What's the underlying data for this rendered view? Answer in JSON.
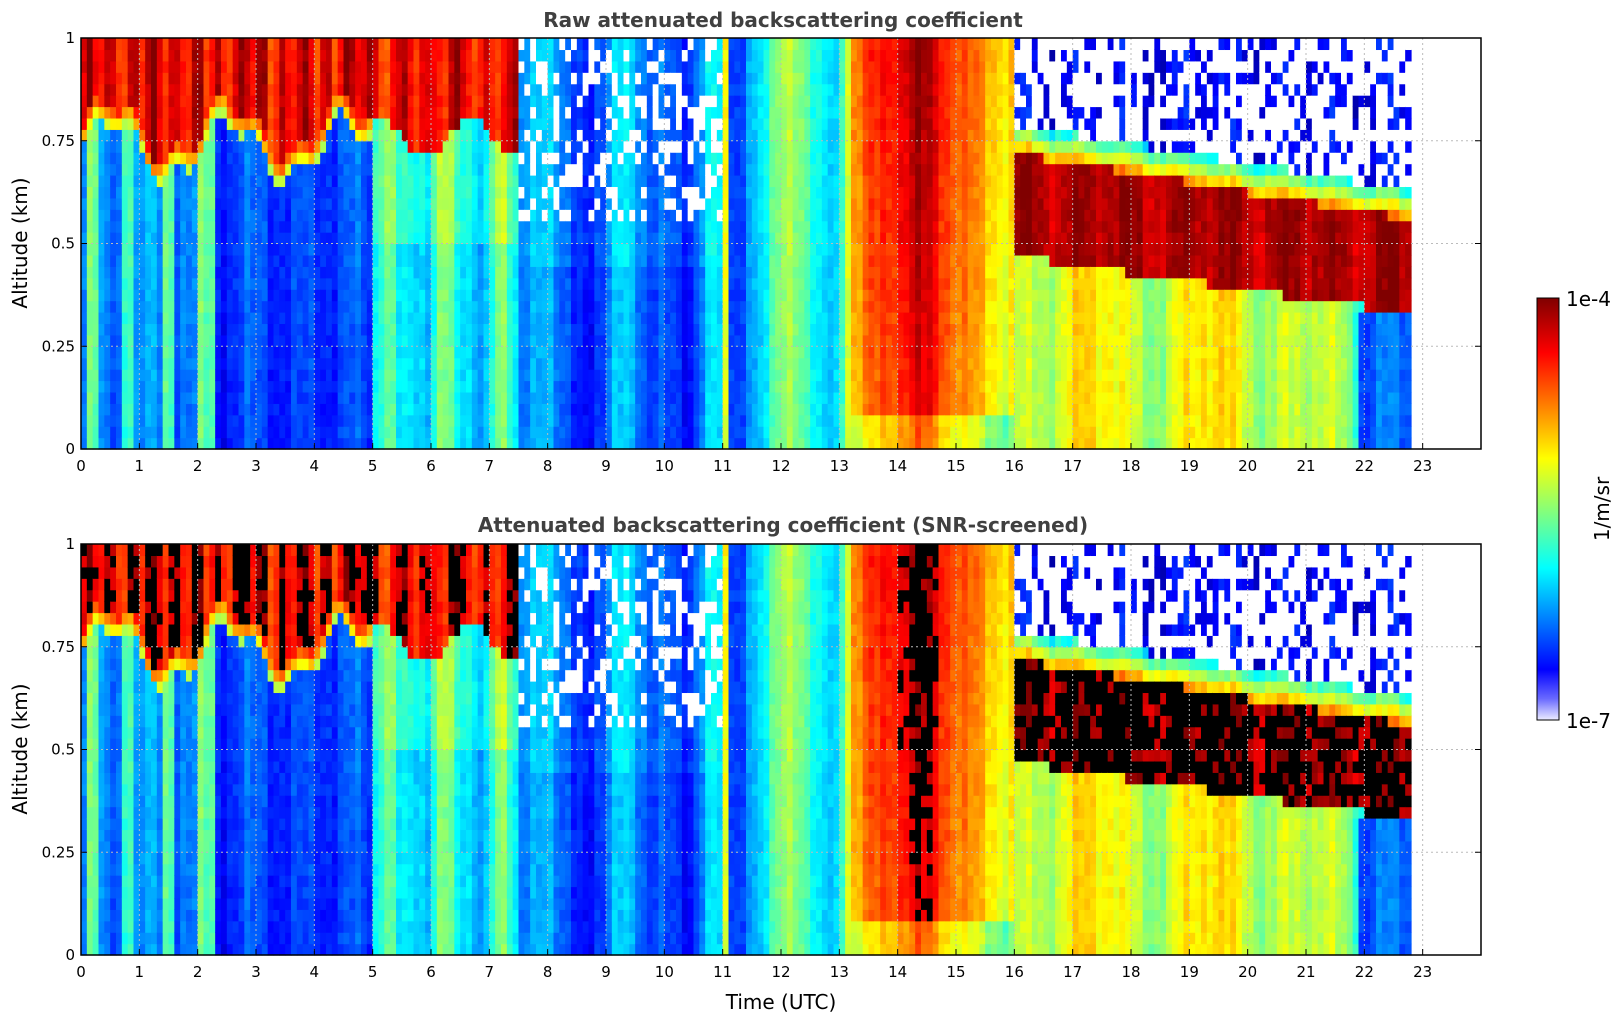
{
  "figure": {
    "colorbar": {
      "label": "1/m/sr",
      "max_label": "1e-4",
      "min_label": "1e-7",
      "range": [
        1e-07,
        0.0001
      ],
      "scale": "log",
      "colormap": "jet",
      "colors": [
        "#ececff",
        "#0000ff",
        "#00ffff",
        "#ffff00",
        "#ff0000",
        "#800000"
      ]
    }
  },
  "chart_data": [
    {
      "type": "heatmap",
      "title": "Raw attenuated backscattering coefficient",
      "xlabel": "",
      "ylabel": "Altitude (km)",
      "xlim": [
        0,
        24
      ],
      "ylim": [
        0,
        1
      ],
      "xticks": [
        "0",
        "1",
        "2",
        "3",
        "4",
        "5",
        "6",
        "7",
        "8",
        "9",
        "10",
        "11",
        "12",
        "13",
        "14",
        "15",
        "16",
        "17",
        "18",
        "19",
        "20",
        "21",
        "22",
        "23"
      ],
      "yticks": [
        "0",
        "0.25",
        "0.5",
        "0.75",
        "1"
      ],
      "data_end_time": 22.8,
      "grid": true,
      "snr_screened": false
    },
    {
      "type": "heatmap",
      "title": "Attenuated backscattering coefficient (SNR-screened)",
      "xlabel": "Time (UTC)",
      "ylabel": "Altitude (km)",
      "xlim": [
        0,
        24
      ],
      "ylim": [
        0,
        1
      ],
      "xticks": [
        "0",
        "1",
        "2",
        "3",
        "4",
        "5",
        "6",
        "7",
        "8",
        "9",
        "10",
        "11",
        "12",
        "13",
        "14",
        "15",
        "16",
        "17",
        "18",
        "19",
        "20",
        "21",
        "22",
        "23"
      ],
      "yticks": [
        "0",
        "0.25",
        "0.5",
        "0.75",
        "1"
      ],
      "data_end_time": 22.8,
      "grid": true,
      "snr_screened": true
    }
  ]
}
